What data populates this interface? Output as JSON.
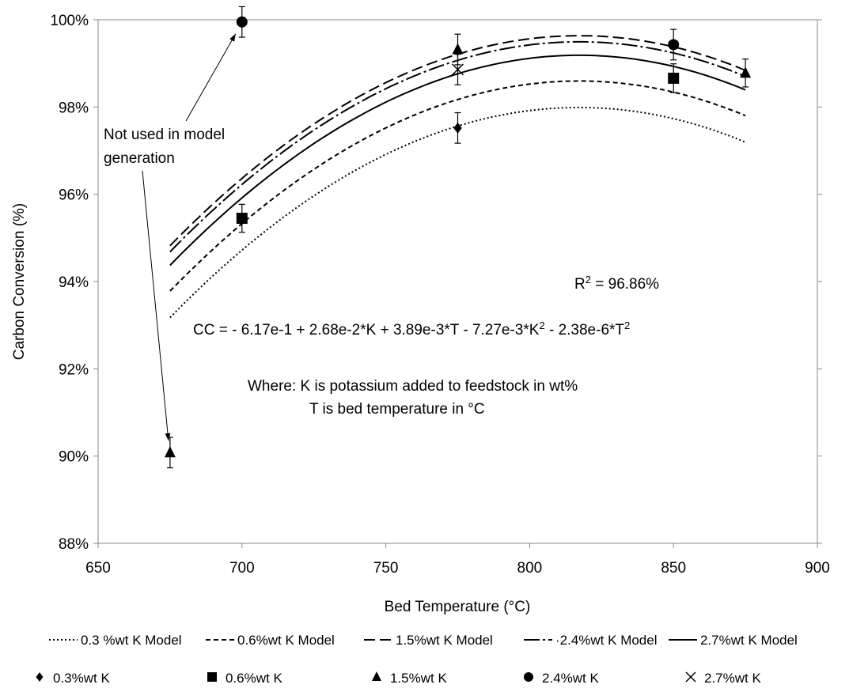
{
  "chart_data": {
    "type": "scatter",
    "xlabel": "Bed Temperature  (°C)",
    "ylabel": "Carbon Conversion (%)",
    "xlim": [
      650,
      900
    ],
    "ylim": [
      0.88,
      1.0
    ],
    "x_ticks": [
      650,
      700,
      750,
      800,
      850,
      900
    ],
    "y_ticks": [
      0.88,
      0.9,
      0.92,
      0.94,
      0.96,
      0.98,
      1.0
    ],
    "x_tick_labels": [
      "650",
      "700",
      "750",
      "800",
      "850",
      "900"
    ],
    "y_tick_labels": [
      "88%",
      "90%",
      "92%",
      "94%",
      "96%",
      "98%",
      "100%"
    ],
    "grid": false,
    "model": {
      "intercept": -0.617,
      "k_coef": 0.0268,
      "t_coef": 0.00389,
      "k2_coef": -0.00727,
      "t2_coef": -2.38e-06,
      "x_range": [
        675,
        875
      ]
    },
    "lines": [
      {
        "name": "0.3 %wt K Model",
        "k": 0.3,
        "dash": "2,3"
      },
      {
        "name": "0.6%wt K Model",
        "k": 0.6,
        "dash": "6,4"
      },
      {
        "name": "1.5%wt K Model",
        "k": 1.5,
        "dash": "14,6"
      },
      {
        "name": "·2.4%wt K Model",
        "k": 2.4,
        "dash": "20,4,3,4"
      },
      {
        "name": "2.7%wt K Model",
        "k": 2.7,
        "dash": ""
      }
    ],
    "points": [
      {
        "name": "0.3%wt K",
        "marker": "diamond",
        "data": [
          {
            "x": 775,
            "y": 0.9752,
            "err": 0.0035
          }
        ]
      },
      {
        "name": "0.6%wt K",
        "marker": "square",
        "data": [
          {
            "x": 700,
            "y": 0.9545,
            "err": 0.0032
          },
          {
            "x": 850,
            "y": 0.9866,
            "err": 0.0033
          }
        ]
      },
      {
        "name": "1.5%wt K",
        "marker": "triangle",
        "data": [
          {
            "x": 675,
            "y": 0.9008,
            "err": 0.0035
          },
          {
            "x": 775,
            "y": 0.9932,
            "err": 0.0035
          },
          {
            "x": 875,
            "y": 0.9878,
            "err": 0.0032
          }
        ]
      },
      {
        "name": "2.4%wt K",
        "marker": "circle",
        "data": [
          {
            "x": 700,
            "y": 0.9995,
            "err": 0.0035
          },
          {
            "x": 850,
            "y": 0.9943,
            "err": 0.0035
          }
        ]
      },
      {
        "name": "2.7%wt K",
        "marker": "x",
        "data": [
          {
            "x": 775,
            "y": 0.9886,
            "err": 0.0035
          }
        ]
      }
    ],
    "annotations": {
      "not_used_1": "Not used in model",
      "not_used_2": "generation",
      "r2_base": "R",
      "r2_sup": "2",
      "r2_value": " = 96.86%",
      "eq_a": "CC = - 6.17e-1 + 2.68e-2*K + 3.89e-3*T - 7.27e-3*K",
      "eq_sup1": "2",
      "eq_b": " - 2.38e-6*T",
      "eq_sup2": "2",
      "where_1": "Where: K is potassium added to feedstock in wt%",
      "where_2": "T is bed temperature in °C",
      "arrow_targets": [
        {
          "x": 700,
          "y": 0.9995
        },
        {
          "x": 675,
          "y": 0.9008
        }
      ]
    }
  }
}
